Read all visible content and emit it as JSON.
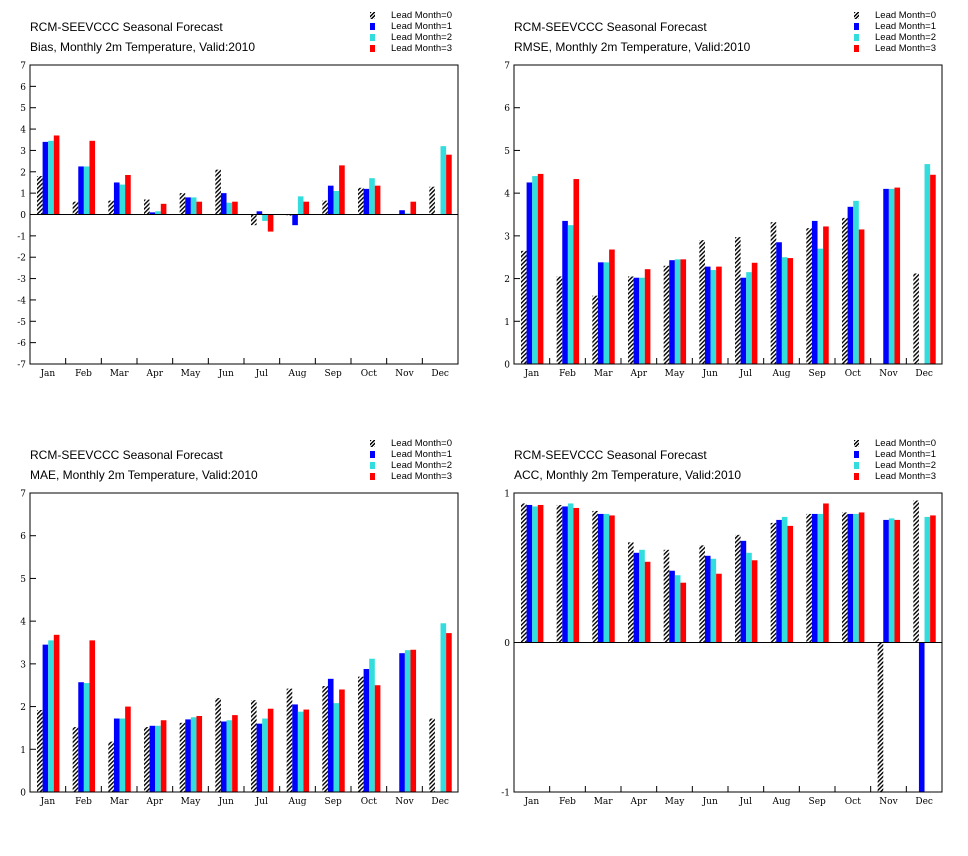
{
  "legend_colors": [
    "hatch",
    "#0000ff",
    "#33dddd",
    "#ff0000"
  ],
  "chart_data": [
    {
      "type": "bar",
      "title": "RCM-SEEVCCC Seasonal Forecast",
      "subtitle": "Bias, Monthly 2m Temperature, Valid:2010",
      "categories": [
        "Jan",
        "Feb",
        "Mar",
        "Apr",
        "May",
        "Jun",
        "Jul",
        "Aug",
        "Sep",
        "Oct",
        "Nov",
        "Dec"
      ],
      "ylim": [
        -7,
        7
      ],
      "yticks": [
        -7,
        -6,
        -5,
        -4,
        -3,
        -2,
        -1,
        0,
        1,
        2,
        3,
        4,
        5,
        6,
        7
      ],
      "series": [
        {
          "name": "Lead Month=0",
          "values": [
            1.8,
            0.6,
            0.65,
            0.7,
            1.0,
            2.1,
            -0.5,
            -0.05,
            0.65,
            1.25,
            0.0,
            1.3
          ]
        },
        {
          "name": "Lead Month=1",
          "values": [
            3.4,
            2.25,
            1.5,
            0.1,
            0.8,
            1.0,
            0.15,
            -0.5,
            1.35,
            1.2,
            0.2,
            0.0
          ]
        },
        {
          "name": "Lead Month=2",
          "values": [
            3.45,
            2.25,
            1.4,
            0.15,
            0.8,
            0.55,
            -0.3,
            0.85,
            1.1,
            1.7,
            0.05,
            3.2
          ]
        },
        {
          "name": "Lead Month=3",
          "values": [
            3.7,
            3.45,
            1.85,
            0.5,
            0.6,
            0.6,
            -0.8,
            0.6,
            2.3,
            1.35,
            0.6,
            2.8
          ]
        }
      ]
    },
    {
      "type": "bar",
      "title": "RCM-SEEVCCC Seasonal Forecast",
      "subtitle": "RMSE, Monthly 2m Temperature, Valid:2010",
      "categories": [
        "Jan",
        "Feb",
        "Mar",
        "Apr",
        "May",
        "Jun",
        "Jul",
        "Aug",
        "Sep",
        "Oct",
        "Nov",
        "Dec"
      ],
      "ylim": [
        0,
        7
      ],
      "yticks": [
        0,
        1,
        2,
        3,
        4,
        5,
        6,
        7
      ],
      "series": [
        {
          "name": "Lead Month=0",
          "values": [
            2.65,
            2.05,
            1.6,
            2.05,
            2.3,
            2.9,
            2.97,
            3.32,
            3.18,
            3.42,
            0,
            2.12
          ]
        },
        {
          "name": "Lead Month=1",
          "values": [
            4.25,
            3.35,
            2.38,
            2.02,
            2.43,
            2.28,
            2.02,
            2.85,
            3.35,
            3.68,
            4.1,
            0
          ]
        },
        {
          "name": "Lead Month=2",
          "values": [
            4.4,
            3.25,
            2.38,
            2.02,
            2.45,
            2.2,
            2.15,
            2.5,
            2.7,
            3.82,
            4.1,
            4.68
          ]
        },
        {
          "name": "Lead Month=3",
          "values": [
            4.45,
            4.33,
            2.68,
            2.22,
            2.45,
            2.28,
            2.37,
            2.48,
            3.22,
            3.15,
            4.13,
            4.43
          ]
        }
      ]
    },
    {
      "type": "bar",
      "title": "RCM-SEEVCCC Seasonal Forecast",
      "subtitle": "MAE, Monthly 2m Temperature, Valid:2010",
      "categories": [
        "Jan",
        "Feb",
        "Mar",
        "Apr",
        "May",
        "Jun",
        "Jul",
        "Aug",
        "Sep",
        "Oct",
        "Nov",
        "Dec"
      ],
      "ylim": [
        0,
        7
      ],
      "yticks": [
        0,
        1,
        2,
        3,
        4,
        5,
        6,
        7
      ],
      "series": [
        {
          "name": "Lead Month=0",
          "values": [
            1.92,
            1.52,
            1.18,
            1.52,
            1.62,
            2.2,
            2.15,
            2.42,
            2.48,
            2.7,
            0,
            1.72
          ]
        },
        {
          "name": "Lead Month=1",
          "values": [
            3.45,
            2.57,
            1.72,
            1.55,
            1.7,
            1.65,
            1.6,
            2.05,
            2.65,
            2.88,
            3.25,
            0
          ]
        },
        {
          "name": "Lead Month=2",
          "values": [
            3.55,
            2.55,
            1.72,
            1.55,
            1.75,
            1.68,
            1.72,
            1.88,
            2.08,
            3.12,
            3.32,
            3.95
          ]
        },
        {
          "name": "Lead Month=3",
          "values": [
            3.68,
            3.55,
            2.0,
            1.68,
            1.78,
            1.8,
            1.95,
            1.93,
            2.4,
            2.5,
            3.33,
            3.72
          ]
        }
      ]
    },
    {
      "type": "bar",
      "title": "RCM-SEEVCCC Seasonal Forecast",
      "subtitle": "ACC, Monthly 2m Temperature, Valid:2010",
      "categories": [
        "Jan",
        "Feb",
        "Mar",
        "Apr",
        "May",
        "Jun",
        "Jul",
        "Aug",
        "Sep",
        "Oct",
        "Nov",
        "Dec"
      ],
      "ylim": [
        -1,
        1
      ],
      "yticks": [
        -1,
        0,
        1
      ],
      "series": [
        {
          "name": "Lead Month=0",
          "values": [
            0.93,
            0.92,
            0.88,
            0.67,
            0.62,
            0.65,
            0.72,
            0.8,
            0.86,
            0.87,
            -1.0,
            0.95
          ]
        },
        {
          "name": "Lead Month=1",
          "values": [
            0.92,
            0.91,
            0.86,
            0.6,
            0.48,
            0.58,
            0.68,
            0.82,
            0.86,
            0.86,
            0.82,
            -1.0
          ]
        },
        {
          "name": "Lead Month=2",
          "values": [
            0.91,
            0.93,
            0.86,
            0.62,
            0.45,
            0.56,
            0.6,
            0.84,
            0.86,
            0.86,
            0.83,
            0.84
          ]
        },
        {
          "name": "Lead Month=3",
          "values": [
            0.92,
            0.9,
            0.85,
            0.54,
            0.4,
            0.46,
            0.55,
            0.78,
            0.93,
            0.87,
            0.82,
            0.85
          ]
        }
      ]
    }
  ]
}
